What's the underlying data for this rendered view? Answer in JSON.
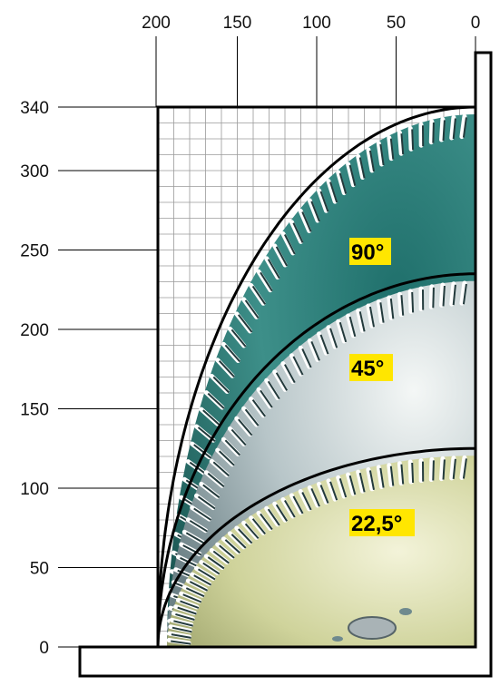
{
  "top_axis": {
    "ticks": [
      "200",
      "150",
      "100",
      "50",
      "0"
    ],
    "values": [
      200,
      150,
      100,
      50,
      0
    ]
  },
  "left_axis": {
    "ticks": [
      "340",
      "300",
      "250",
      "200",
      "150",
      "100",
      "50",
      "0"
    ],
    "values": [
      340,
      300,
      250,
      200,
      150,
      100,
      50,
      0
    ]
  },
  "blades": [
    {
      "label": "90°",
      "outer": 340,
      "inner": 305,
      "color": "#2e7f7a",
      "hi": "#7fc3bd"
    },
    {
      "label": "45°",
      "outer": 235,
      "inner": 210,
      "color": "#8fa3a8",
      "hi": "#eef3f2"
    },
    {
      "label": "22,5°",
      "outer": 125,
      "inner": 105,
      "color": "#bfc48a",
      "hi": "#f1f2d6"
    }
  ],
  "colors": {
    "label_bg": "#ffe600",
    "grid": "#9a9a9a",
    "frame": "#000000"
  }
}
